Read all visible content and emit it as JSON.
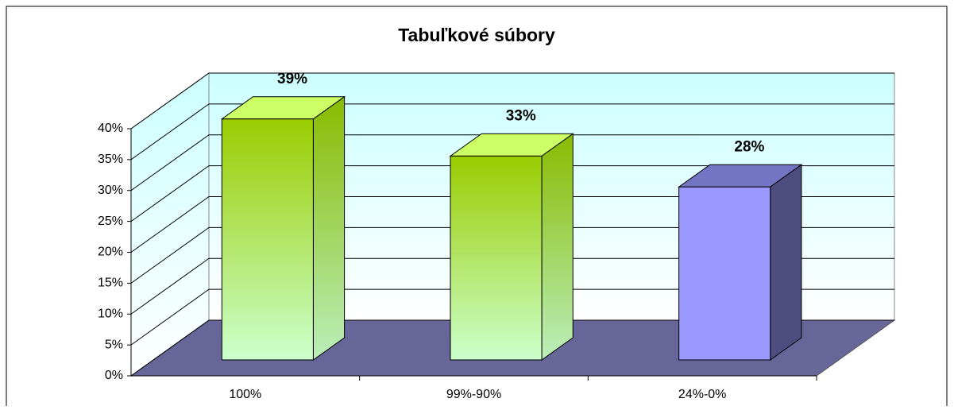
{
  "chart_data": {
    "type": "bar3d",
    "title": "Tabuľkové súbory",
    "categories": [
      "100%",
      "99%-90%",
      "24%-0%"
    ],
    "values": [
      39,
      33,
      28
    ],
    "value_labels": [
      "39%",
      "33%",
      "28%"
    ],
    "colors": [
      "#99cc00",
      "#99cc00",
      "#9999ff"
    ],
    "ylim": [
      0,
      40
    ],
    "yticks": [
      {
        "value": 0,
        "label": "0%"
      },
      {
        "value": 5,
        "label": "5%"
      },
      {
        "value": 10,
        "label": "10%"
      },
      {
        "value": 15,
        "label": "15%"
      },
      {
        "value": 20,
        "label": "20%"
      },
      {
        "value": 25,
        "label": "25%"
      },
      {
        "value": 30,
        "label": "30%"
      },
      {
        "value": 35,
        "label": "35%"
      },
      {
        "value": 40,
        "label": "40%"
      }
    ],
    "grid": true
  }
}
